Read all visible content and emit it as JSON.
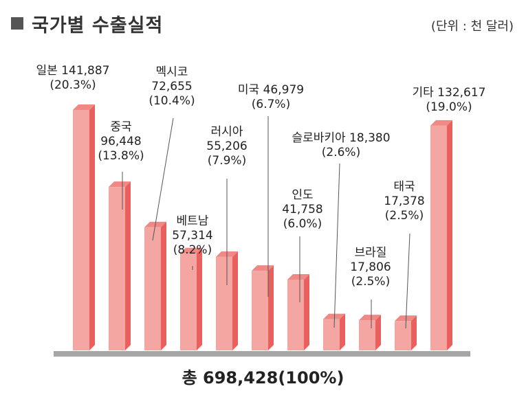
{
  "header": {
    "title": "국가별 수출실적",
    "unit": "(단위 : 천 달러)"
  },
  "footer": {
    "total": "총 698,428(100%)"
  },
  "colors": {
    "bar_front": "#f4a6a2",
    "bar_side": "#e9605e",
    "bar_top": "#f08985",
    "axis": "#a6a6a6",
    "leader": "#555555",
    "title_square": "#555555"
  },
  "chart_data": {
    "type": "bar",
    "title": "국가별 수출실적",
    "unit": "(단위 : 천 달러)",
    "categories": [
      "일본",
      "중국",
      "멕시코",
      "베트남",
      "러시아",
      "미국",
      "인도",
      "슬로바키아",
      "브라질",
      "태국",
      "기타"
    ],
    "values": [
      141887,
      96448,
      72655,
      57314,
      55206,
      46979,
      41758,
      18380,
      17806,
      17378,
      132617
    ],
    "value_labels": [
      "141,887",
      "96,448",
      "72,655",
      "57,314",
      "55,206",
      "46,979",
      "41,758",
      "18,380",
      "17,806",
      "17,378",
      "132,617"
    ],
    "shares": [
      "(20.3%)",
      "(13.8%)",
      "(10.4%)",
      "(8.2%)",
      "(7.9%)",
      "(6.7%)",
      "(6.0%)",
      "(2.6%)",
      "(2.5%)",
      "(2.5%)",
      "(19.0%)"
    ],
    "total": "총 698,428(100%)",
    "grid": false,
    "legend": "none",
    "bar_style": "3d"
  }
}
